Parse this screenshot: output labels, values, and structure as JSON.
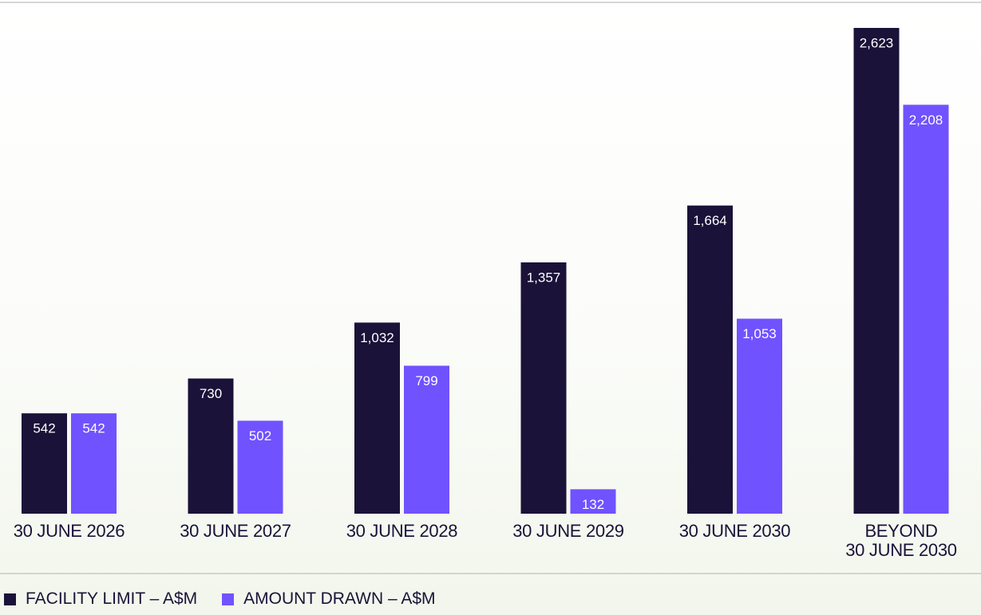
{
  "chart_data": {
    "type": "bar",
    "categories": [
      "30 JUNE 2026",
      "30 JUNE 2027",
      "30 JUNE 2028",
      "30 JUNE 2029",
      "30 JUNE 2030",
      "BEYOND\n30 JUNE 2030"
    ],
    "series": [
      {
        "name": "FACILITY LIMIT – A$M",
        "color": "#1a1238",
        "values": [
          542,
          730,
          1032,
          1357,
          1664,
          2623
        ],
        "value_labels": [
          "542",
          "730",
          "1,032",
          "1,357",
          "1,664",
          "2,623"
        ]
      },
      {
        "name": "AMOUNT DRAWN – A$M",
        "color": "#7152ff",
        "values": [
          542,
          502,
          799,
          132,
          1053,
          2208
        ],
        "value_labels": [
          "542",
          "502",
          "799",
          "132",
          "1,053",
          "2,208"
        ]
      }
    ]
  }
}
